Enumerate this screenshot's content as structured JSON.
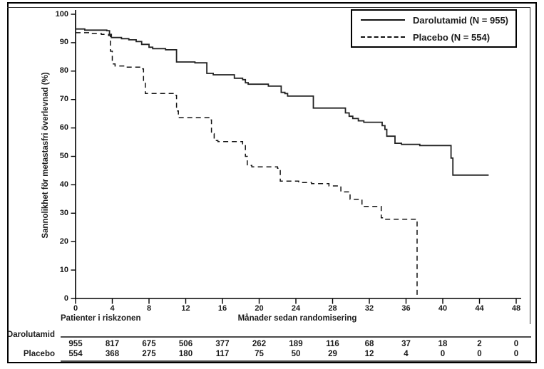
{
  "chart_data": {
    "type": "line",
    "subtype": "kaplan-meier-step",
    "title": "",
    "xlabel": "Månader sedan randomisering",
    "ylabel": "Sannolikhet för metastasfri överlevnad (%)",
    "xlim": [
      0,
      48
    ],
    "ylim": [
      0,
      100
    ],
    "x_ticks": [
      0,
      4,
      8,
      12,
      16,
      20,
      24,
      28,
      32,
      36,
      40,
      44,
      48
    ],
    "y_ticks": [
      0,
      10,
      20,
      30,
      40,
      50,
      60,
      70,
      80,
      90,
      100
    ],
    "grid": false,
    "legend_position": "top-right",
    "series": [
      {
        "name": "Darolutamid (N = 955)",
        "line_style": "solid",
        "color": "#222222",
        "step_points": [
          [
            0,
            100
          ],
          [
            0,
            94.8
          ],
          [
            1,
            94.4
          ],
          [
            3.4,
            94.2
          ],
          [
            3.7,
            92.9
          ],
          [
            3.9,
            91.8
          ],
          [
            5,
            91.4
          ],
          [
            5.8,
            91
          ],
          [
            6.6,
            90.4
          ],
          [
            7.2,
            89.4
          ],
          [
            8,
            88.4
          ],
          [
            8.4,
            87.9
          ],
          [
            9.8,
            87.5
          ],
          [
            11,
            83.2
          ],
          [
            13,
            82.9
          ],
          [
            14.3,
            79.2
          ],
          [
            15,
            78.7
          ],
          [
            17.3,
            77.5
          ],
          [
            18.2,
            77
          ],
          [
            18.5,
            75.9
          ],
          [
            18.8,
            75.4
          ],
          [
            21,
            74.7
          ],
          [
            22.4,
            72.5
          ],
          [
            22.8,
            72.1
          ],
          [
            23.1,
            71.2
          ],
          [
            25.9,
            67
          ],
          [
            29.4,
            65.3
          ],
          [
            29.8,
            64.1
          ],
          [
            30.2,
            63.3
          ],
          [
            30.8,
            62.5
          ],
          [
            31.4,
            62
          ],
          [
            33.4,
            60.8
          ],
          [
            33.7,
            59.5
          ],
          [
            33.9,
            57.1
          ],
          [
            34.8,
            54.6
          ],
          [
            35.5,
            54.2
          ],
          [
            37.5,
            53.8
          ],
          [
            40.9,
            49.4
          ],
          [
            41.1,
            43.4
          ],
          [
            45,
            43.4
          ]
        ]
      },
      {
        "name": "Placebo (N = 554)",
        "line_style": "dashed",
        "color": "#111111",
        "step_points": [
          [
            0,
            93.5
          ],
          [
            1.5,
            93.2
          ],
          [
            2.8,
            92.9
          ],
          [
            3.6,
            92.5
          ],
          [
            3.8,
            87
          ],
          [
            4,
            82.5
          ],
          [
            4.3,
            81.8
          ],
          [
            5.5,
            81.4
          ],
          [
            7.1,
            80.8
          ],
          [
            7.4,
            76
          ],
          [
            7.6,
            72.1
          ],
          [
            10.8,
            71.5
          ],
          [
            11,
            66
          ],
          [
            11.2,
            63.6
          ],
          [
            14.6,
            62.8
          ],
          [
            14.8,
            58
          ],
          [
            15.1,
            55.6
          ],
          [
            15.5,
            55.2
          ],
          [
            18.2,
            54.4
          ],
          [
            18.5,
            50
          ],
          [
            18.7,
            46.8
          ],
          [
            19.2,
            46.3
          ],
          [
            22,
            45.8
          ],
          [
            22.3,
            41.3
          ],
          [
            24.3,
            40.8
          ],
          [
            25.7,
            40.4
          ],
          [
            27.6,
            39.6
          ],
          [
            28.9,
            37.5
          ],
          [
            29.9,
            34.9
          ],
          [
            31.2,
            32.4
          ],
          [
            33.3,
            28.4
          ],
          [
            33.6,
            27.9
          ],
          [
            37.2,
            27.9
          ],
          [
            37.2,
            0
          ]
        ]
      }
    ],
    "at_risk": {
      "title": "Patienter i riskzonen",
      "time_points": [
        0,
        4,
        8,
        12,
        16,
        20,
        24,
        28,
        32,
        36,
        40,
        44,
        48
      ],
      "rows": [
        {
          "label": "Darolutamid",
          "values": [
            955,
            817,
            675,
            506,
            377,
            262,
            189,
            116,
            68,
            37,
            18,
            2,
            0
          ]
        },
        {
          "label": "Placebo",
          "values": [
            554,
            368,
            275,
            180,
            117,
            75,
            50,
            29,
            12,
            4,
            0,
            0,
            0
          ]
        }
      ]
    },
    "colors": {
      "foreground": "#1a1a1a",
      "background": "#ffffff",
      "axis": "#000000"
    }
  }
}
